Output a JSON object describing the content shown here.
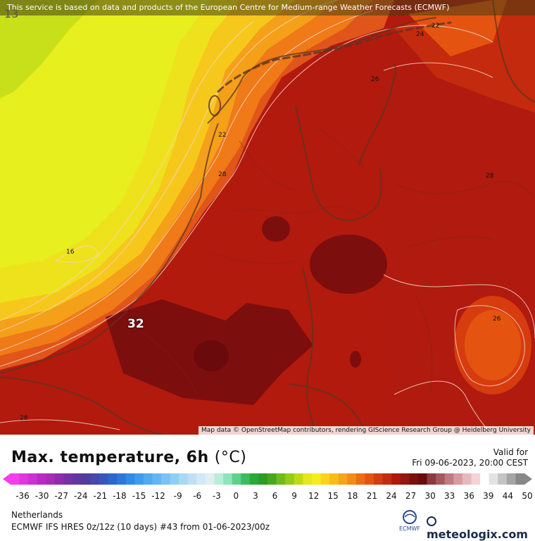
{
  "map": {
    "banner": "This service is based on data and products of the European Centre for Medium-range Weather Forecasts (ECMWF)",
    "attribution": "Map data © OpenStreetMap contributors, rendering GIScience Research Group @ Heidelberg University",
    "corner_label": "13",
    "peak_label": "32",
    "contour_labels": [
      "22",
      "24",
      "26",
      "22",
      "28",
      "28",
      "16",
      "26",
      "28"
    ]
  },
  "legend": {
    "title": "Max. temperature, 6h",
    "unit": "(°C)",
    "valid_label": "Valid for",
    "valid_time": "Fri 09-06-2023, 20:00 CEST",
    "scale_ticks": [
      "-36",
      "-30",
      "-27",
      "-24",
      "-21",
      "-18",
      "-15",
      "-12",
      "-9",
      "-6",
      "-3",
      "0",
      "3",
      "6",
      "9",
      "12",
      "15",
      "18",
      "21",
      "24",
      "27",
      "30",
      "33",
      "36",
      "39",
      "44",
      "50"
    ],
    "scale_colors": [
      "#f53cf0",
      "#e235e2",
      "#cf2ed4",
      "#bb28c6",
      "#a72ab9",
      "#8d2cae",
      "#7630a6",
      "#6236a0",
      "#4f3da0",
      "#4747ae",
      "#3a55bf",
      "#2e65cf",
      "#2a78de",
      "#2f8be8",
      "#3c9cef",
      "#4faaf1",
      "#64b6f2",
      "#7bc2f3",
      "#93cdf3",
      "#aad7f4",
      "#bfe0f4",
      "#d2e8f4",
      "#e0eef4",
      "#b8eed8",
      "#8fe3bd",
      "#5fd18c",
      "#3cbc5e",
      "#28aa3a",
      "#2e9b23",
      "#4aa71d",
      "#6fbb17",
      "#95cc14",
      "#bedb12",
      "#e2e81a",
      "#f6ec1c",
      "#f9d41b",
      "#f8bd18",
      "#f7a416",
      "#f48b14",
      "#ee6d12",
      "#e45410",
      "#d63c0e",
      "#c42a0d",
      "#b0170d",
      "#951510",
      "#7c0e0e",
      "#6a0a0c",
      "#8a3a3f",
      "#a5585d",
      "#c07a80",
      "#d79aa1",
      "#e8b7bd",
      "#f5d3d8",
      "#ffffff",
      "#e3e3e3",
      "#c4c4c4",
      "#a5a5a5",
      "#888888"
    ],
    "region": "Netherlands",
    "model_run": "ECMWF IFS HRES 0z/12z (10 days) #43 from  01-06-2023/00z",
    "ecmwf_label": "ECMWF",
    "brand": "meteologix.com"
  }
}
